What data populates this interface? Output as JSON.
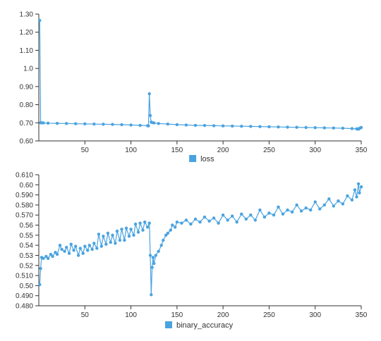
{
  "colors": {
    "series": "#4aa3e0",
    "axis": "#333333",
    "text": "#333333"
  },
  "chart_data": [
    {
      "type": "line",
      "legend": "loss",
      "legend_position": "bottom-center",
      "grid": false,
      "xlim": [
        0,
        350
      ],
      "ylim": [
        0.6,
        1.3
      ],
      "x_ticks": [
        50,
        100,
        150,
        200,
        250,
        300,
        350
      ],
      "x_tick_labels": [
        "50",
        "100",
        "150",
        "200",
        "250",
        "300",
        "350"
      ],
      "y_ticks": [
        0.6,
        0.7,
        0.8,
        0.9,
        1.0,
        1.1,
        1.2,
        1.3
      ],
      "y_tick_labels": [
        "0.60",
        "0.70",
        "0.80",
        "0.90",
        "1.0",
        "1.10",
        "1.20",
        "1.30"
      ],
      "series": [
        {
          "name": "loss",
          "x": [
            1,
            2,
            3,
            5,
            10,
            20,
            30,
            40,
            50,
            60,
            70,
            80,
            90,
            100,
            110,
            118,
            119,
            120,
            121,
            122,
            123,
            125,
            130,
            140,
            150,
            160,
            170,
            180,
            190,
            200,
            210,
            220,
            230,
            240,
            250,
            260,
            270,
            280,
            290,
            300,
            310,
            320,
            330,
            340,
            345,
            346,
            347,
            348,
            349,
            350
          ],
          "y": [
            1.265,
            0.7,
            0.7,
            0.699,
            0.698,
            0.697,
            0.696,
            0.695,
            0.694,
            0.693,
            0.692,
            0.691,
            0.69,
            0.688,
            0.686,
            0.684,
            0.683,
            0.86,
            0.74,
            0.704,
            0.701,
            0.699,
            0.696,
            0.693,
            0.69,
            0.688,
            0.686,
            0.685,
            0.684,
            0.683,
            0.682,
            0.681,
            0.68,
            0.679,
            0.678,
            0.677,
            0.676,
            0.675,
            0.674,
            0.673,
            0.672,
            0.671,
            0.67,
            0.668,
            0.666,
            0.667,
            0.665,
            0.668,
            0.672,
            0.674
          ]
        }
      ]
    },
    {
      "type": "line",
      "legend": "binary_accuracy",
      "legend_position": "bottom-center",
      "grid": false,
      "xlim": [
        0,
        350
      ],
      "ylim": [
        0.48,
        0.61
      ],
      "x_ticks": [
        50,
        100,
        150,
        200,
        250,
        300,
        350
      ],
      "x_tick_labels": [
        "50",
        "100",
        "150",
        "200",
        "250",
        "300",
        "350"
      ],
      "y_ticks": [
        0.48,
        0.49,
        0.5,
        0.51,
        0.52,
        0.53,
        0.54,
        0.55,
        0.56,
        0.57,
        0.58,
        0.59,
        0.6,
        0.61
      ],
      "y_tick_labels": [
        "0.480",
        "0.490",
        "0.50",
        "0.510",
        "0.52",
        "0.53",
        "0.54",
        "0.55",
        "0.56",
        "0.570",
        "0.580",
        "0.590",
        "0.60",
        "0.610"
      ],
      "series": [
        {
          "name": "binary_accuracy",
          "x": [
            1,
            2,
            3,
            5,
            8,
            10,
            13,
            15,
            18,
            20,
            23,
            25,
            28,
            30,
            33,
            35,
            38,
            40,
            43,
            45,
            48,
            50,
            53,
            55,
            58,
            60,
            63,
            65,
            68,
            70,
            73,
            75,
            78,
            80,
            83,
            85,
            88,
            90,
            93,
            95,
            98,
            100,
            103,
            105,
            108,
            110,
            113,
            115,
            118,
            120,
            121,
            122,
            123,
            124,
            125,
            127,
            130,
            133,
            135,
            138,
            140,
            143,
            145,
            148,
            150,
            155,
            160,
            165,
            170,
            175,
            180,
            185,
            190,
            195,
            200,
            205,
            210,
            215,
            220,
            225,
            230,
            235,
            240,
            245,
            250,
            255,
            260,
            265,
            270,
            275,
            280,
            285,
            290,
            295,
            300,
            305,
            310,
            315,
            320,
            325,
            330,
            335,
            340,
            343,
            345,
            347,
            348,
            350
          ],
          "y": [
            0.501,
            0.517,
            0.528,
            0.527,
            0.529,
            0.527,
            0.531,
            0.529,
            0.533,
            0.531,
            0.54,
            0.536,
            0.534,
            0.538,
            0.532,
            0.541,
            0.535,
            0.539,
            0.53,
            0.537,
            0.532,
            0.539,
            0.535,
            0.54,
            0.536,
            0.542,
            0.537,
            0.551,
            0.539,
            0.549,
            0.541,
            0.552,
            0.543,
            0.55,
            0.542,
            0.554,
            0.545,
            0.556,
            0.545,
            0.557,
            0.549,
            0.556,
            0.55,
            0.561,
            0.553,
            0.562,
            0.555,
            0.563,
            0.558,
            0.562,
            0.53,
            0.491,
            0.518,
            0.528,
            0.522,
            0.53,
            0.534,
            0.54,
            0.545,
            0.55,
            0.552,
            0.555,
            0.56,
            0.558,
            0.563,
            0.562,
            0.565,
            0.561,
            0.566,
            0.563,
            0.568,
            0.564,
            0.567,
            0.562,
            0.57,
            0.565,
            0.569,
            0.563,
            0.571,
            0.566,
            0.57,
            0.565,
            0.575,
            0.568,
            0.572,
            0.57,
            0.578,
            0.571,
            0.575,
            0.573,
            0.58,
            0.574,
            0.577,
            0.575,
            0.583,
            0.576,
            0.58,
            0.586,
            0.579,
            0.584,
            0.581,
            0.589,
            0.585,
            0.595,
            0.588,
            0.601,
            0.592,
            0.598
          ]
        }
      ]
    }
  ]
}
